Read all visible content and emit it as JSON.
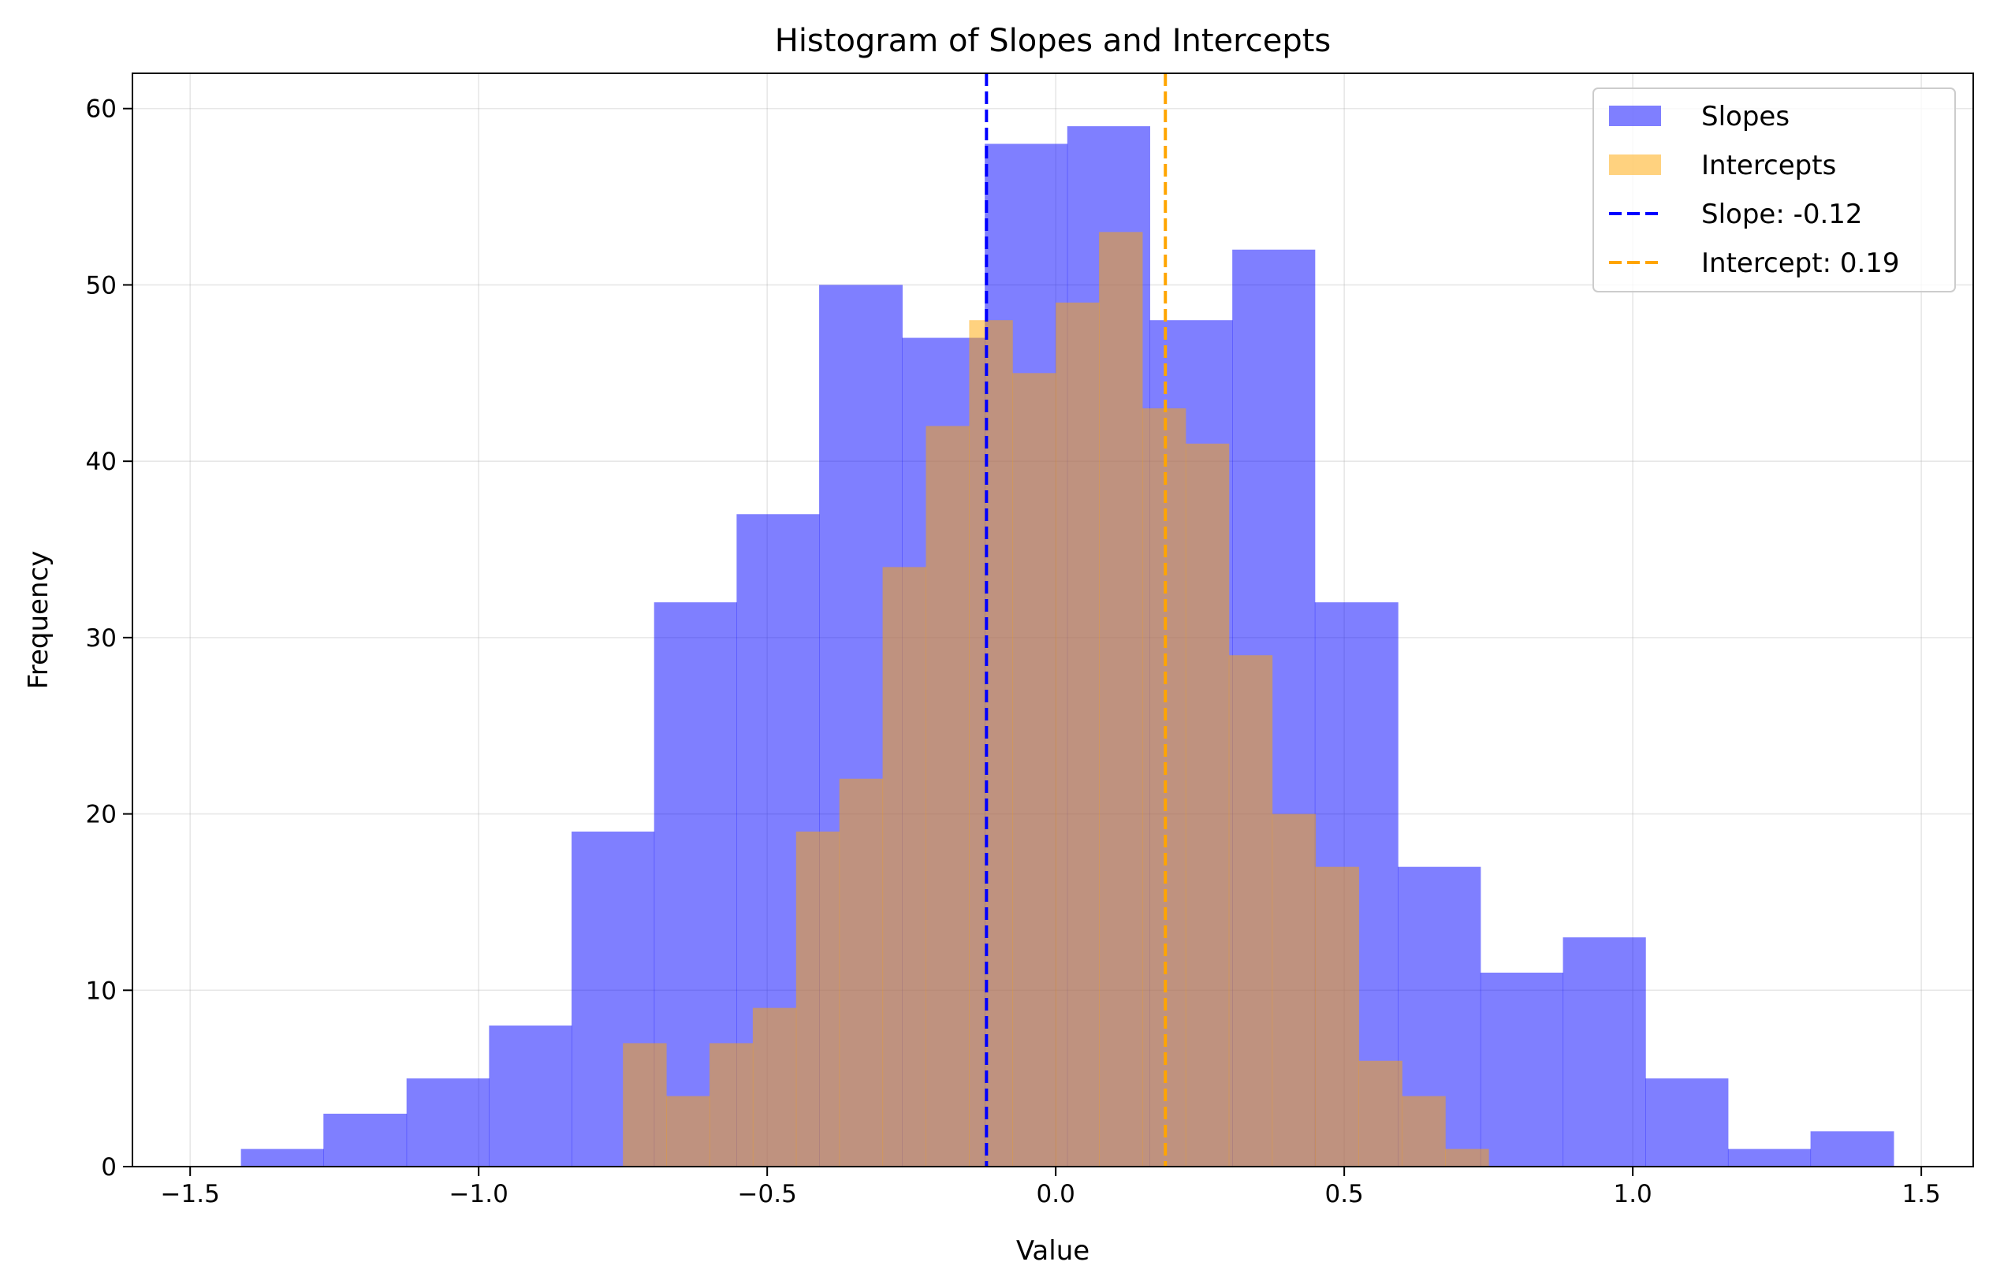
{
  "chart_data": {
    "type": "bar",
    "title": "Histogram of Slopes and Intercepts",
    "xlabel": "Value",
    "ylabel": "Frequency",
    "xlim": [
      -1.6,
      1.59
    ],
    "ylim": [
      0,
      62
    ],
    "xticks": [
      -1.5,
      -1.0,
      -0.5,
      0.0,
      0.5,
      1.0,
      1.5
    ],
    "xtick_labels": [
      "−1.5",
      "−1.0",
      "−0.5",
      "0.0",
      "0.5",
      "1.0",
      "1.5"
    ],
    "yticks": [
      0,
      10,
      20,
      30,
      40,
      50,
      60
    ],
    "ytick_labels": [
      "0",
      "10",
      "20",
      "30",
      "40",
      "50",
      "60"
    ],
    "grid": true,
    "legend_position": "top-right",
    "series": [
      {
        "name": "Slopes",
        "color": "#0000ff",
        "opacity": 0.5,
        "bin_edges": [
          -1.412,
          -1.269,
          -1.125,
          -0.982,
          -0.839,
          -0.696,
          -0.553,
          -0.41,
          -0.266,
          -0.123,
          0.02,
          0.163,
          0.306,
          0.449,
          0.593,
          0.736,
          0.879,
          1.022,
          1.165,
          1.308,
          1.452
        ],
        "counts": [
          1,
          3,
          5,
          8,
          19,
          32,
          37,
          50,
          47,
          58,
          59,
          48,
          52,
          32,
          17,
          11,
          13,
          5,
          1,
          2
        ]
      },
      {
        "name": "Intercepts",
        "color": "#ffa500",
        "opacity": 0.5,
        "bin_edges": [
          -0.75,
          -0.675,
          -0.6,
          -0.525,
          -0.45,
          -0.375,
          -0.3,
          -0.225,
          -0.15,
          -0.075,
          0.0,
          0.075,
          0.15,
          0.225,
          0.3,
          0.375,
          0.45,
          0.525,
          0.6,
          0.675,
          0.75
        ],
        "counts": [
          7,
          4,
          7,
          9,
          19,
          22,
          34,
          42,
          48,
          45,
          49,
          53,
          43,
          41,
          29,
          20,
          17,
          6,
          4,
          1
        ]
      }
    ],
    "lines": [
      {
        "name": "Slope: -0.12",
        "x": -0.12,
        "color": "#0000ff",
        "style": "dashed"
      },
      {
        "name": "Intercept: 0.19",
        "x": 0.19,
        "color": "#ffa500",
        "style": "dashed"
      }
    ]
  }
}
